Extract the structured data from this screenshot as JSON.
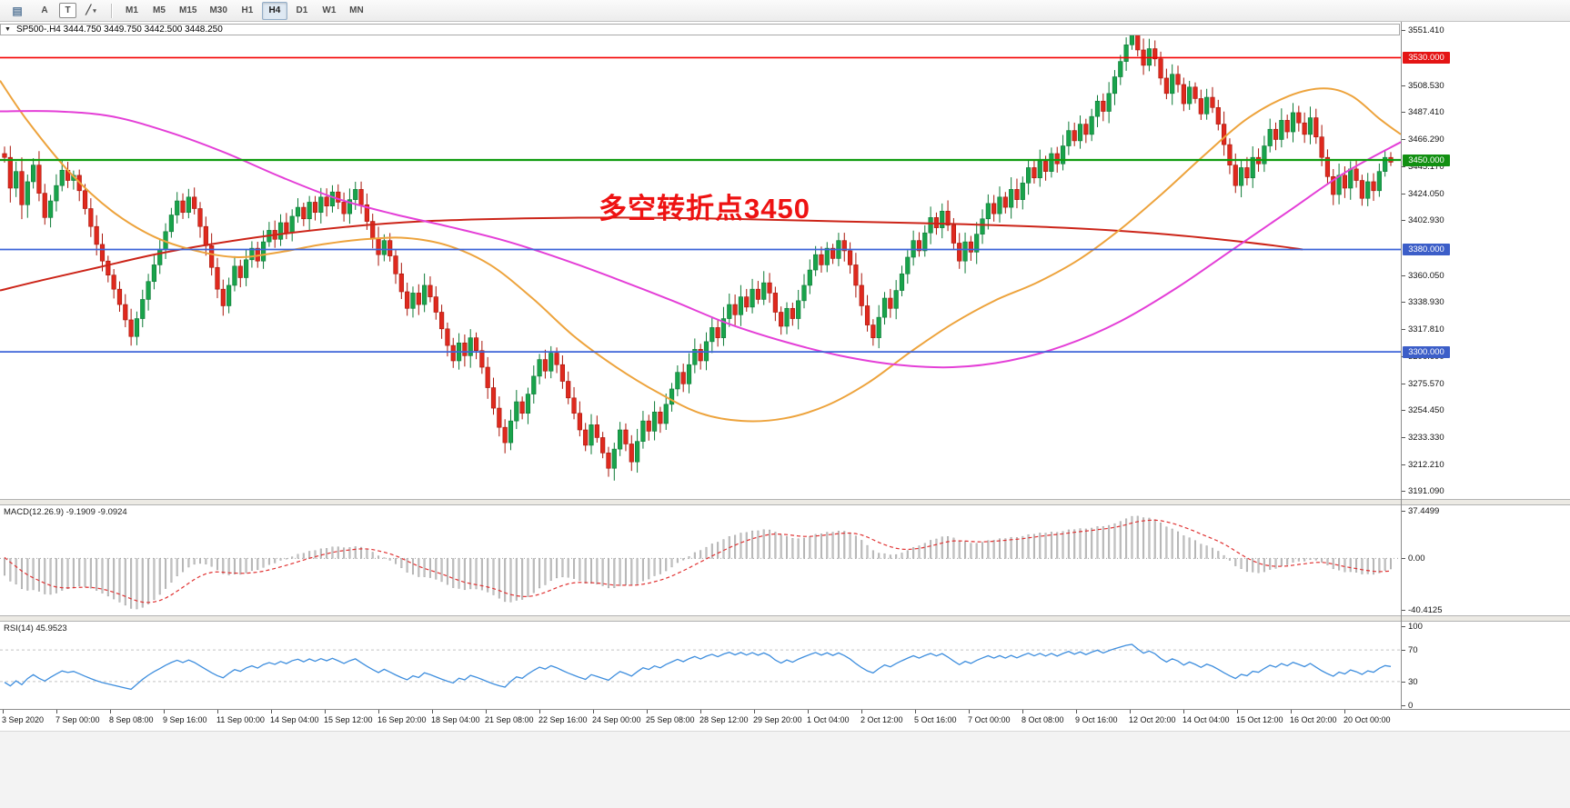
{
  "toolbar": {
    "tile_icon": "▤",
    "pointer_label": "A",
    "text_label": "T",
    "draw_glyph": "╱",
    "caret": "▾",
    "timeframes": [
      "M1",
      "M5",
      "M15",
      "M30",
      "H1",
      "H4",
      "D1",
      "W1",
      "MN"
    ],
    "active_timeframe": "H4"
  },
  "symbol_header": {
    "caret": "▼",
    "text": "SP500-.H4 3444.750 3449.750 3442.500 3448.250"
  },
  "annotation": {
    "text": "多空转折点3450",
    "color": "#ee1212"
  },
  "axis": {
    "price_min": 3185,
    "price_max": 3558,
    "ticks": [
      {
        "v": 3551.41,
        "label": "3551.410"
      },
      {
        "v": 3508.53,
        "label": "3508.530"
      },
      {
        "v": 3487.41,
        "label": "3487.410"
      },
      {
        "v": 3466.29,
        "label": "3466.290"
      },
      {
        "v": 3445.17,
        "label": "3445.170"
      },
      {
        "v": 3424.05,
        "label": "3424.050"
      },
      {
        "v": 3402.93,
        "label": "3402.930"
      },
      {
        "v": 3360.05,
        "label": "3360.050"
      },
      {
        "v": 3338.93,
        "label": "3338.930"
      },
      {
        "v": 3317.81,
        "label": "3317.810"
      },
      {
        "v": 3296.69,
        "label": "3296.690"
      },
      {
        "v": 3275.57,
        "label": "3275.570"
      },
      {
        "v": 3254.45,
        "label": "3254.450"
      },
      {
        "v": 3233.33,
        "label": "3233.330"
      },
      {
        "v": 3212.21,
        "label": "3212.210"
      },
      {
        "v": 3191.09,
        "label": "3191.090"
      }
    ]
  },
  "levels": [
    {
      "value": 3530,
      "label": "3530.000",
      "color": "#f40000",
      "badge": "#e41414",
      "width": 1.6
    },
    {
      "value": 3450,
      "label": "3450.000",
      "color": "#0f9c0f",
      "badge": "#129012",
      "width": 2.2
    },
    {
      "value": 3380,
      "label": "3380.000",
      "color": "#3c64d8",
      "badge": "#3c5ec8",
      "width": 1.8
    },
    {
      "value": 3300,
      "label": "3300.000",
      "color": "#3c64d8",
      "badge": "#3c5ec8",
      "width": 1.8
    }
  ],
  "macd": {
    "label": "MACD(12.26.9) -9.1909 -9.0924",
    "fast": 12,
    "slow": 26,
    "signal": 9,
    "range": [
      -40.4125,
      37.4499
    ],
    "axis": [
      {
        "v": 37.4499,
        "label": "37.4499"
      },
      {
        "v": 0,
        "label": "0.00"
      },
      {
        "v": -40.4125,
        "label": "-40.4125"
      }
    ],
    "hist_color": "#c2c2c2",
    "hist_stroke": "#9e9e9e",
    "signal_color": "#e03232"
  },
  "rsi": {
    "label": "RSI(14) 45.9523",
    "period": 14,
    "levels": [
      70,
      30
    ],
    "axis": [
      {
        "v": 100,
        "label": "100"
      },
      {
        "v": 70,
        "label": "70"
      },
      {
        "v": 30,
        "label": "30"
      },
      {
        "v": 0,
        "label": "0"
      }
    ],
    "line_color": "#3e8ede"
  },
  "timeline": [
    "3 Sep 2020",
    "7 Sep 00:00",
    "8 Sep 08:00",
    "9 Sep 16:00",
    "11 Sep 00:00",
    "14 Sep 04:00",
    "15 Sep 12:00",
    "16 Sep 20:00",
    "18 Sep 04:00",
    "21 Sep 08:00",
    "22 Sep 16:00",
    "24 Sep 00:00",
    "25 Sep 08:00",
    "28 Sep 12:00",
    "29 Sep 20:00",
    "1 Oct 04:00",
    "2 Oct 12:00",
    "5 Oct 16:00",
    "7 Oct 00:00",
    "8 Oct 08:00",
    "9 Oct 16:00",
    "12 Oct 20:00",
    "14 Oct 04:00",
    "15 Oct 12:00",
    "16 Oct 20:00",
    "20 Oct 00:00"
  ],
  "chart_data": {
    "type": "candlestick",
    "symbol": "SP500-",
    "timeframe": "H4",
    "ohlc_display": {
      "open": "3444.750",
      "high": "3449.750",
      "low": "3442.500",
      "close": "3448.250"
    },
    "up_color": "#19a34b",
    "up_stroke": "#0d7a36",
    "down_color": "#df291e",
    "down_stroke": "#a81408",
    "first_open": 3455,
    "closes": [
      3452,
      3428,
      3441,
      3415,
      3433,
      3446,
      3424,
      3405,
      3418,
      3430,
      3442,
      3434,
      3438,
      3426,
      3412,
      3398,
      3384,
      3371,
      3360,
      3349,
      3337,
      3325,
      3312,
      3326,
      3341,
      3355,
      3368,
      3380,
      3394,
      3407,
      3418,
      3409,
      3421,
      3412,
      3398,
      3383,
      3366,
      3349,
      3336,
      3352,
      3367,
      3358,
      3372,
      3381,
      3371,
      3386,
      3395,
      3388,
      3401,
      3393,
      3406,
      3413,
      3404,
      3417,
      3409,
      3421,
      3414,
      3425,
      3417,
      3408,
      3419,
      3427,
      3415,
      3402,
      3389,
      3376,
      3387,
      3375,
      3361,
      3347,
      3334,
      3346,
      3337,
      3352,
      3343,
      3331,
      3318,
      3305,
      3293,
      3307,
      3297,
      3311,
      3301,
      3288,
      3272,
      3256,
      3241,
      3229,
      3246,
      3261,
      3252,
      3267,
      3281,
      3294,
      3285,
      3299,
      3290,
      3277,
      3264,
      3252,
      3239,
      3227,
      3243,
      3233,
      3221,
      3209,
      3224,
      3239,
      3228,
      3214,
      3230,
      3246,
      3238,
      3253,
      3244,
      3259,
      3271,
      3284,
      3275,
      3290,
      3302,
      3293,
      3308,
      3319,
      3311,
      3326,
      3337,
      3329,
      3343,
      3335,
      3349,
      3341,
      3354,
      3346,
      3331,
      3320,
      3334,
      3326,
      3340,
      3352,
      3364,
      3376,
      3368,
      3381,
      3373,
      3387,
      3379,
      3368,
      3352,
      3336,
      3321,
      3311,
      3327,
      3342,
      3334,
      3348,
      3361,
      3374,
      3387,
      3379,
      3393,
      3405,
      3397,
      3410,
      3399,
      3385,
      3371,
      3386,
      3378,
      3392,
      3404,
      3416,
      3408,
      3421,
      3413,
      3427,
      3419,
      3432,
      3444,
      3436,
      3449,
      3441,
      3455,
      3447,
      3461,
      3473,
      3465,
      3478,
      3470,
      3484,
      3496,
      3488,
      3502,
      3515,
      3527,
      3540,
      3548,
      3536,
      3524,
      3537,
      3529,
      3514,
      3502,
      3517,
      3509,
      3494,
      3507,
      3498,
      3486,
      3499,
      3491,
      3478,
      3462,
      3446,
      3430,
      3444,
      3436,
      3452,
      3447,
      3461,
      3474,
      3466,
      3481,
      3472,
      3487,
      3479,
      3470,
      3483,
      3468,
      3452,
      3437,
      3423,
      3438,
      3428,
      3443,
      3434,
      3420,
      3433,
      3426,
      3441,
      3452,
      3448.25
    ],
    "prehistory": [
      3482,
      3490,
      3487,
      3496,
      3504,
      3511,
      3506,
      3515,
      3522,
      3518,
      3528,
      3536,
      3532,
      3541,
      3549,
      3545,
      3554,
      3561,
      3568,
      3575,
      3580,
      3572,
      3560,
      3544,
      3526,
      3508,
      3490,
      3472,
      3461,
      3455
    ],
    "moving_averages": [
      {
        "name": "ma-fast-orange",
        "color": "#eda33c",
        "points": [
          [
            0,
            3512
          ],
          [
            0.02,
            3480
          ],
          [
            0.05,
            3440
          ],
          [
            0.08,
            3410
          ],
          [
            0.11,
            3390
          ],
          [
            0.14,
            3379
          ],
          [
            0.17,
            3374
          ],
          [
            0.2,
            3378
          ],
          [
            0.23,
            3384
          ],
          [
            0.26,
            3388
          ],
          [
            0.29,
            3389
          ],
          [
            0.32,
            3383
          ],
          [
            0.35,
            3368
          ],
          [
            0.38,
            3342
          ],
          [
            0.41,
            3312
          ],
          [
            0.44,
            3288
          ],
          [
            0.47,
            3268
          ],
          [
            0.5,
            3252
          ],
          [
            0.53,
            3246
          ],
          [
            0.56,
            3248
          ],
          [
            0.59,
            3258
          ],
          [
            0.62,
            3276
          ],
          [
            0.65,
            3300
          ],
          [
            0.68,
            3322
          ],
          [
            0.71,
            3340
          ],
          [
            0.74,
            3354
          ],
          [
            0.77,
            3372
          ],
          [
            0.8,
            3396
          ],
          [
            0.83,
            3424
          ],
          [
            0.86,
            3454
          ],
          [
            0.89,
            3482
          ],
          [
            0.92,
            3500
          ],
          [
            0.945,
            3506
          ],
          [
            0.965,
            3500
          ],
          [
            0.985,
            3482
          ],
          [
            1.0,
            3470
          ]
        ]
      },
      {
        "name": "ma-mid-magenta",
        "color": "#e43fd7",
        "points": [
          [
            0,
            3488
          ],
          [
            0.04,
            3488
          ],
          [
            0.08,
            3484
          ],
          [
            0.12,
            3472
          ],
          [
            0.16,
            3456
          ],
          [
            0.2,
            3437
          ],
          [
            0.24,
            3420
          ],
          [
            0.28,
            3408
          ],
          [
            0.32,
            3398
          ],
          [
            0.36,
            3387
          ],
          [
            0.4,
            3373
          ],
          [
            0.44,
            3357
          ],
          [
            0.48,
            3340
          ],
          [
            0.52,
            3322
          ],
          [
            0.56,
            3308
          ],
          [
            0.6,
            3297
          ],
          [
            0.64,
            3290
          ],
          [
            0.68,
            3288
          ],
          [
            0.72,
            3293
          ],
          [
            0.76,
            3305
          ],
          [
            0.8,
            3324
          ],
          [
            0.84,
            3350
          ],
          [
            0.88,
            3380
          ],
          [
            0.92,
            3410
          ],
          [
            0.96,
            3440
          ],
          [
            1.0,
            3464
          ]
        ]
      },
      {
        "name": "ma-slow-red",
        "color": "#cc2418",
        "points": [
          [
            0,
            3348
          ],
          [
            0.03,
            3356
          ],
          [
            0.07,
            3366
          ],
          [
            0.11,
            3376
          ],
          [
            0.15,
            3384
          ],
          [
            0.2,
            3392
          ],
          [
            0.25,
            3398
          ],
          [
            0.3,
            3402
          ],
          [
            0.36,
            3404
          ],
          [
            0.44,
            3405
          ],
          [
            0.52,
            3404
          ],
          [
            0.6,
            3402
          ],
          [
            0.68,
            3400
          ],
          [
            0.76,
            3397
          ],
          [
            0.82,
            3393
          ],
          [
            0.87,
            3388
          ],
          [
            0.91,
            3383
          ],
          [
            0.93,
            3380
          ]
        ]
      }
    ]
  }
}
